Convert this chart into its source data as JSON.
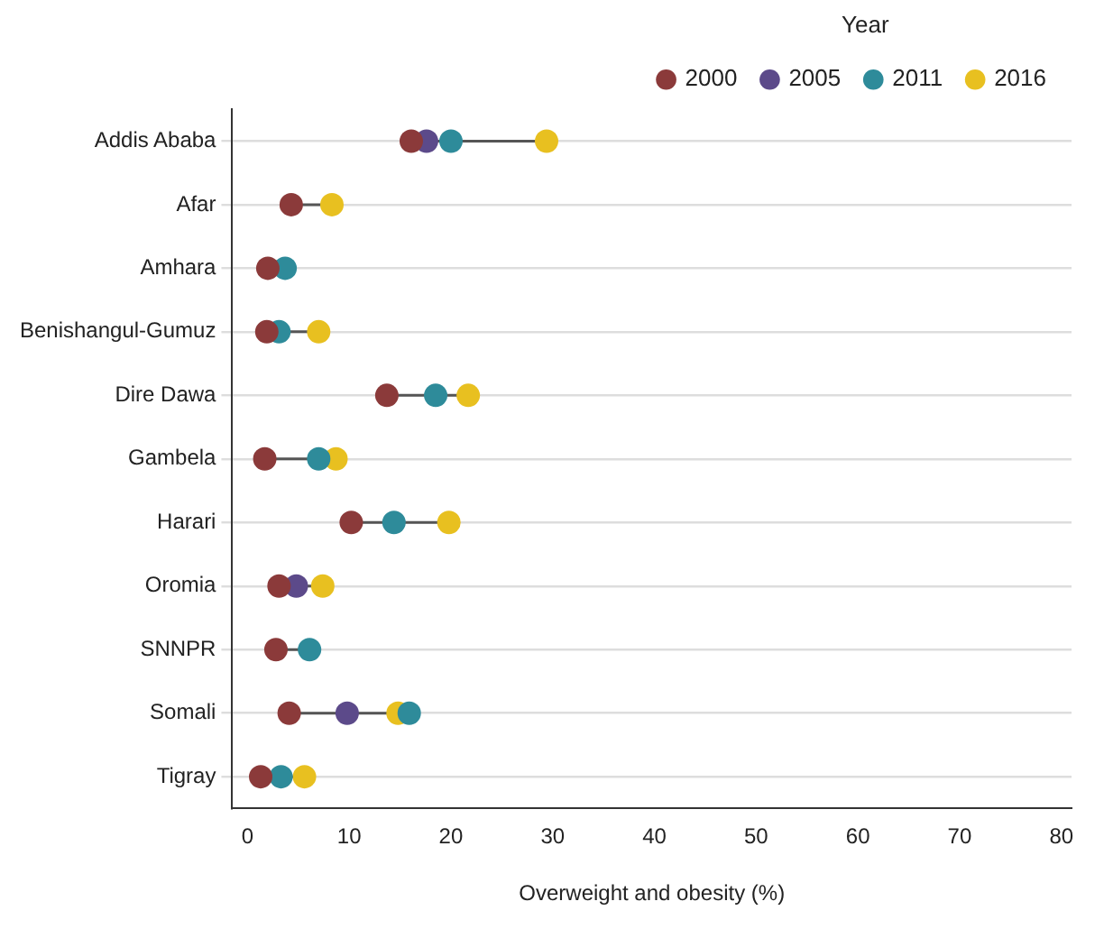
{
  "chart_data": {
    "type": "scatter",
    "xlabel": "Overweight and obesity (%)",
    "legend_title": "Year",
    "categories": [
      "Addis Ababa",
      "Afar",
      "Amhara",
      "Benishangul-Gumuz",
      "Dire Dawa",
      "Gambela",
      "Harari",
      "Oromia",
      "SNNPR",
      "Somali",
      "Tigray"
    ],
    "series": [
      {
        "name": "2000",
        "color": "#8b3a3a",
        "values": [
          16.1,
          4.3,
          2.0,
          1.9,
          13.7,
          1.7,
          10.2,
          3.1,
          2.8,
          4.1,
          1.3
        ]
      },
      {
        "name": "2005",
        "color": "#5c4a8a",
        "values": [
          17.6,
          null,
          null,
          null,
          null,
          null,
          null,
          4.8,
          null,
          9.8,
          null
        ]
      },
      {
        "name": "2011",
        "color": "#2e8b9a",
        "values": [
          20.0,
          null,
          3.7,
          3.1,
          18.5,
          7.0,
          14.4,
          null,
          6.1,
          15.9,
          3.3
        ]
      },
      {
        "name": "2016",
        "color": "#e8c020",
        "values": [
          29.4,
          8.3,
          null,
          7.0,
          21.7,
          8.7,
          19.8,
          7.4,
          null,
          14.8,
          5.6
        ]
      }
    ],
    "xlim": [
      -1.5,
      81
    ],
    "xticks": [
      0,
      10,
      20,
      30,
      40,
      50,
      60,
      70,
      80
    ],
    "grid": "y",
    "legend": "top right",
    "marker": "circle",
    "orientation": "horizontal"
  }
}
